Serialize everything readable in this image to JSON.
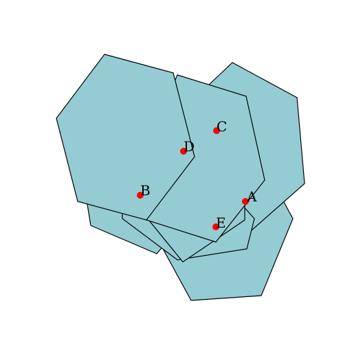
{
  "colors": {
    "polygon_fill": "#95ccd4",
    "polygon_stroke": "#000000",
    "point": "#ff0000",
    "label": "#000000"
  },
  "points": [
    {
      "label": "A"
    },
    {
      "label": "B"
    },
    {
      "label": "C"
    },
    {
      "label": "D"
    },
    {
      "label": "E"
    }
  ]
}
